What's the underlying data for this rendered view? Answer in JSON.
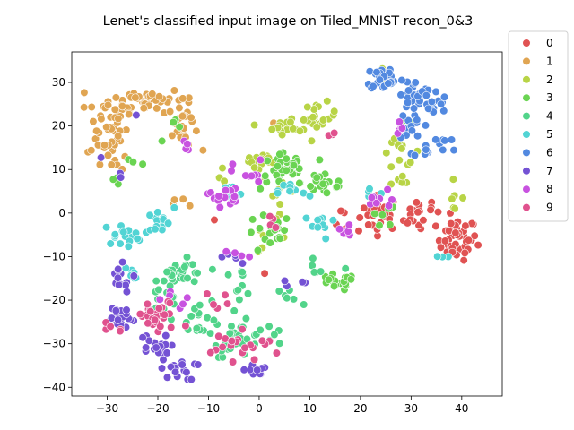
{
  "chart_data": {
    "type": "scatter",
    "title": "Lenet's classified input image on Tiled_MNIST recon_0&3",
    "xlabel": "",
    "ylabel": "",
    "xlim": [
      -37,
      48
    ],
    "ylim": [
      -42,
      37
    ],
    "xticks": [
      -30,
      -20,
      -10,
      0,
      10,
      20,
      30,
      40
    ],
    "yticks": [
      -40,
      -30,
      -20,
      -10,
      0,
      10,
      20,
      30
    ],
    "grid": false,
    "legend_position": "outside-right",
    "series": [
      {
        "name": "0",
        "color": "#e05252",
        "clusters": [
          {
            "cx": 24,
            "cy": 0,
            "sx": 2.5,
            "sy": 2.5,
            "n": 30
          },
          {
            "cx": 33,
            "cy": 1,
            "sx": 2,
            "sy": 1.2,
            "n": 10
          },
          {
            "cx": 39,
            "cy": -6,
            "sx": 2.5,
            "sy": 3,
            "n": 45
          },
          {
            "cx": 30,
            "cy": -3,
            "sx": 2,
            "sy": 2,
            "n": 8
          },
          {
            "cx": 18,
            "cy": -3,
            "sx": 2,
            "sy": 2,
            "n": 6
          },
          {
            "cx": -9,
            "cy": -2,
            "sx": 0.5,
            "sy": 0.5,
            "n": 1
          },
          {
            "cx": 1,
            "cy": -14,
            "sx": 0.5,
            "sy": 0.5,
            "n": 1
          }
        ]
      },
      {
        "name": "1",
        "color": "#e0a552",
        "clusters": [
          {
            "cx": -30,
            "cy": 20,
            "sx": 2.5,
            "sy": 5,
            "n": 45
          },
          {
            "cx": -22,
            "cy": 26,
            "sx": 4.5,
            "sy": 1.8,
            "n": 45
          },
          {
            "cx": -15,
            "cy": 20,
            "sx": 1.8,
            "sy": 3.5,
            "n": 25
          },
          {
            "cx": -29,
            "cy": 12,
            "sx": 1.5,
            "sy": 1.5,
            "n": 6
          },
          {
            "cx": -17,
            "cy": 2,
            "sx": 1.5,
            "sy": 1.5,
            "n": 4
          },
          {
            "cx": 3,
            "cy": 20,
            "sx": 1,
            "sy": 1,
            "n": 2
          }
        ]
      },
      {
        "name": "2",
        "color": "#b8d446",
        "clusters": [
          {
            "cx": 6,
            "cy": 20,
            "sx": 3,
            "sy": 1.2,
            "n": 18
          },
          {
            "cx": 12,
            "cy": 22,
            "sx": 2,
            "sy": 2,
            "n": 18
          },
          {
            "cx": 0,
            "cy": 12,
            "sx": 2.5,
            "sy": 2,
            "n": 14
          },
          {
            "cx": 4,
            "cy": 5,
            "sx": 2,
            "sy": 3,
            "n": 10
          },
          {
            "cx": 28,
            "cy": 14,
            "sx": 2.5,
            "sy": 2,
            "n": 12
          },
          {
            "cx": 28,
            "cy": 7,
            "sx": 1.5,
            "sy": 1.5,
            "n": 5
          },
          {
            "cx": 38,
            "cy": 4,
            "sx": 1.5,
            "sy": 2,
            "n": 6
          },
          {
            "cx": -8,
            "cy": 8,
            "sx": 1.5,
            "sy": 1.5,
            "n": 4
          },
          {
            "cx": 2,
            "cy": -6,
            "sx": 2,
            "sy": 2,
            "n": 5
          },
          {
            "cx": 24,
            "cy": 30,
            "sx": 1.5,
            "sy": 2,
            "n": 4
          }
        ]
      },
      {
        "name": "3",
        "color": "#6ad452",
        "clusters": [
          {
            "cx": 5,
            "cy": 10,
            "sx": 3,
            "sy": 3,
            "n": 30
          },
          {
            "cx": 13,
            "cy": 7,
            "sx": 3,
            "sy": 2,
            "n": 24
          },
          {
            "cx": 15,
            "cy": -16,
            "sx": 2.5,
            "sy": 1.2,
            "n": 18
          },
          {
            "cx": 2,
            "cy": -5,
            "sx": 3,
            "sy": 3,
            "n": 18
          },
          {
            "cx": -16,
            "cy": 18,
            "sx": 1.5,
            "sy": 2,
            "n": 5
          },
          {
            "cx": -24,
            "cy": 12,
            "sx": 1.5,
            "sy": 1,
            "n": 3
          },
          {
            "cx": -28,
            "cy": 8,
            "sx": 1,
            "sy": 1,
            "n": 3
          },
          {
            "cx": 24,
            "cy": -2,
            "sx": 2,
            "sy": 3,
            "n": 7
          },
          {
            "cx": 29,
            "cy": 20,
            "sx": 1,
            "sy": 1.5,
            "n": 3
          }
        ]
      },
      {
        "name": "4",
        "color": "#52d48a",
        "clusters": [
          {
            "cx": -15,
            "cy": -14,
            "sx": 3,
            "sy": 2,
            "n": 30
          },
          {
            "cx": -12,
            "cy": -24,
            "sx": 3,
            "sy": 2.5,
            "n": 22
          },
          {
            "cx": -4,
            "cy": -29,
            "sx": 3,
            "sy": 2.5,
            "n": 26
          },
          {
            "cx": -4,
            "cy": -16,
            "sx": 2,
            "sy": 2,
            "n": 10
          },
          {
            "cx": 3,
            "cy": -27,
            "sx": 1.5,
            "sy": 2,
            "n": 6
          },
          {
            "cx": 5,
            "cy": -19,
            "sx": 2,
            "sy": 1.5,
            "n": 6
          },
          {
            "cx": 12,
            "cy": -14,
            "sx": 2,
            "sy": 2,
            "n": 6
          },
          {
            "cx": -19,
            "cy": -20,
            "sx": 2,
            "sy": 2,
            "n": 8
          }
        ]
      },
      {
        "name": "5",
        "color": "#52d4d4",
        "clusters": [
          {
            "cx": -27,
            "cy": -5,
            "sx": 2.5,
            "sy": 1.5,
            "n": 18
          },
          {
            "cx": -20,
            "cy": -2,
            "sx": 2,
            "sy": 2,
            "n": 14
          },
          {
            "cx": -6,
            "cy": 4,
            "sx": 2,
            "sy": 1.5,
            "n": 10
          },
          {
            "cx": 7,
            "cy": 5,
            "sx": 2,
            "sy": 1.5,
            "n": 10
          },
          {
            "cx": 12,
            "cy": -3,
            "sx": 2,
            "sy": 2,
            "n": 12
          },
          {
            "cx": 22,
            "cy": 5,
            "sx": 1.5,
            "sy": 1.5,
            "n": 4
          },
          {
            "cx": -25,
            "cy": -14,
            "sx": 1.5,
            "sy": 2,
            "n": 6
          },
          {
            "cx": 36,
            "cy": -10,
            "sx": 1,
            "sy": 0.5,
            "n": 3
          }
        ]
      },
      {
        "name": "6",
        "color": "#5289e0",
        "clusters": [
          {
            "cx": 25,
            "cy": 31,
            "sx": 2.5,
            "sy": 1.8,
            "n": 30
          },
          {
            "cx": 31,
            "cy": 27,
            "sx": 2,
            "sy": 2,
            "n": 25
          },
          {
            "cx": 34,
            "cy": 25,
            "sx": 2,
            "sy": 2,
            "n": 15
          },
          {
            "cx": 30,
            "cy": 20,
            "sx": 1.5,
            "sy": 2,
            "n": 12
          },
          {
            "cx": 33,
            "cy": 15,
            "sx": 1.5,
            "sy": 1.5,
            "n": 8
          },
          {
            "cx": 38,
            "cy": 16,
            "sx": 1.5,
            "sy": 1,
            "n": 6
          }
        ]
      },
      {
        "name": "7",
        "color": "#7452d4",
        "clusters": [
          {
            "cx": -28,
            "cy": -24,
            "sx": 2.2,
            "sy": 2,
            "n": 25
          },
          {
            "cx": -28,
            "cy": -15,
            "sx": 2,
            "sy": 2,
            "n": 14
          },
          {
            "cx": -21,
            "cy": -31,
            "sx": 2,
            "sy": 2,
            "n": 18
          },
          {
            "cx": -16,
            "cy": -36,
            "sx": 2.2,
            "sy": 1.5,
            "n": 18
          },
          {
            "cx": -1,
            "cy": -36,
            "sx": 2,
            "sy": 0.8,
            "n": 10
          },
          {
            "cx": -5,
            "cy": -10,
            "sx": 1.5,
            "sy": 1.5,
            "n": 5
          },
          {
            "cx": 7,
            "cy": -16,
            "sx": 1.5,
            "sy": 1,
            "n": 4
          },
          {
            "cx": -28,
            "cy": 8,
            "sx": 1,
            "sy": 1,
            "n": 2
          },
          {
            "cx": -24,
            "cy": 22,
            "sx": 0.5,
            "sy": 0.5,
            "n": 1
          },
          {
            "cx": -32,
            "cy": 13,
            "sx": 0.5,
            "sy": 0.5,
            "n": 1
          }
        ]
      },
      {
        "name": "8",
        "color": "#c852e0",
        "clusters": [
          {
            "cx": -7,
            "cy": 4,
            "sx": 2,
            "sy": 1.5,
            "n": 14
          },
          {
            "cx": -2,
            "cy": 9,
            "sx": 2,
            "sy": 2,
            "n": 10
          },
          {
            "cx": 17,
            "cy": -4,
            "sx": 2,
            "sy": 1.5,
            "n": 8
          },
          {
            "cx": 24,
            "cy": 2,
            "sx": 2,
            "sy": 2,
            "n": 8
          },
          {
            "cx": 28,
            "cy": 20,
            "sx": 1.5,
            "sy": 1.5,
            "n": 5
          },
          {
            "cx": -16,
            "cy": -20,
            "sx": 2,
            "sy": 1.5,
            "n": 6
          },
          {
            "cx": -4,
            "cy": -10,
            "sx": 1.5,
            "sy": 1,
            "n": 4
          },
          {
            "cx": -14,
            "cy": 15,
            "sx": 1.5,
            "sy": 1,
            "n": 4
          }
        ]
      },
      {
        "name": "9",
        "color": "#e0528e",
        "clusters": [
          {
            "cx": -20,
            "cy": -24,
            "sx": 3,
            "sy": 2.5,
            "n": 30
          },
          {
            "cx": -29,
            "cy": -26,
            "sx": 1.5,
            "sy": 1,
            "n": 5
          },
          {
            "cx": -6,
            "cy": -30,
            "sx": 2,
            "sy": 2,
            "n": 12
          },
          {
            "cx": 0,
            "cy": -31,
            "sx": 2,
            "sy": 1.5,
            "n": 8
          },
          {
            "cx": 2,
            "cy": -2,
            "sx": 1.5,
            "sy": 1.5,
            "n": 4
          },
          {
            "cx": 15,
            "cy": 18,
            "sx": 1.5,
            "sy": 1,
            "n": 3
          },
          {
            "cx": -8,
            "cy": -20,
            "sx": 1.5,
            "sy": 1.5,
            "n": 5
          }
        ]
      }
    ]
  }
}
